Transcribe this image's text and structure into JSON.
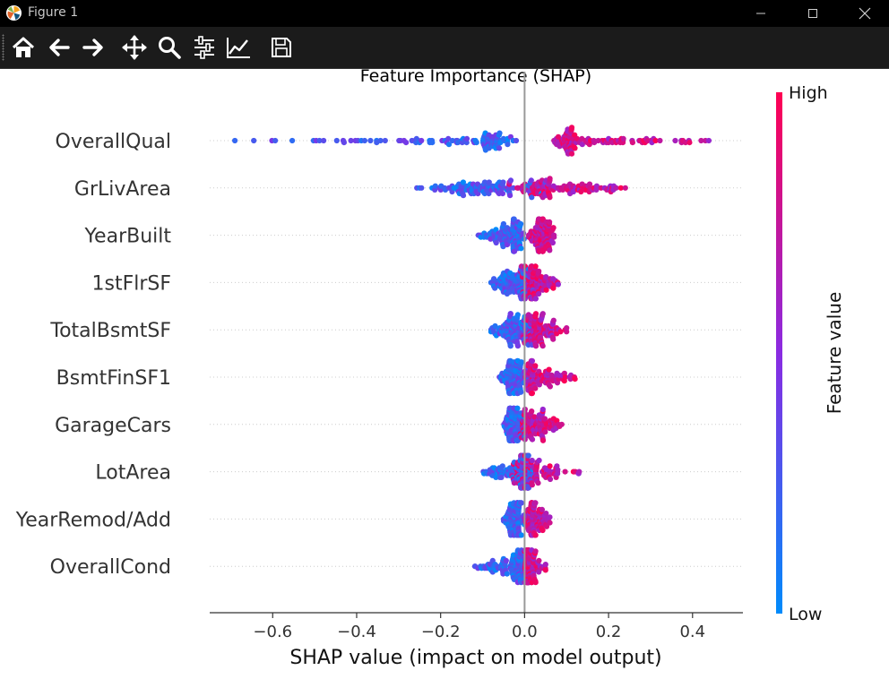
{
  "window": {
    "title": "Figure 1",
    "controls": [
      "minimize-icon",
      "maximize-icon",
      "close-icon"
    ]
  },
  "toolbar": {
    "tools": [
      {
        "name": "home",
        "icon": "home-icon"
      },
      {
        "name": "back",
        "icon": "arrow-left-icon"
      },
      {
        "name": "forward",
        "icon": "arrow-right-icon"
      },
      {
        "name": "pan",
        "icon": "move-icon"
      },
      {
        "name": "zoom",
        "icon": "magnifier-icon"
      },
      {
        "name": "configure-subplots",
        "icon": "sliders-icon"
      },
      {
        "name": "edit-axis",
        "icon": "line-chart-icon"
      },
      {
        "name": "save",
        "icon": "floppy-disk-icon"
      }
    ]
  },
  "colors": {
    "low": "#008bfb",
    "mid": "#8a2be2",
    "high": "#ff0052",
    "titlebar_bg": "#000000",
    "toolbar_bg": "#1b1b1b"
  },
  "chart_data": {
    "type": "scatter",
    "subtype": "shap-beeswarm",
    "title": "Feature Importance (SHAP)",
    "xlabel": "SHAP value (impact on model output)",
    "ylabel": "",
    "xlim": [
      -0.75,
      0.52
    ],
    "xticks": [
      -0.6,
      -0.4,
      -0.2,
      0.0,
      0.2,
      0.4
    ],
    "xtick_labels": [
      "−0.6",
      "−0.4",
      "−0.2",
      "0.0",
      "0.2",
      "0.4"
    ],
    "colorbar": {
      "label": "Feature value",
      "high": "High",
      "low": "Low"
    },
    "features": [
      {
        "name": "OverallQual",
        "min": -0.69,
        "max": 0.46,
        "low_range": [
          -0.69,
          -0.02
        ],
        "high_range": [
          0.07,
          0.46
        ],
        "low_center": -0.1,
        "high_center": 0.12
      },
      {
        "name": "GrLivArea",
        "min": -0.26,
        "max": 0.24,
        "low_range": [
          -0.26,
          0.05
        ],
        "high_range": [
          -0.04,
          0.24
        ],
        "low_center": -0.1,
        "high_center": 0.06
      },
      {
        "name": "YearBuilt",
        "min": -0.11,
        "max": 0.07,
        "low_range": [
          -0.11,
          0.0
        ],
        "high_range": [
          0.01,
          0.07
        ],
        "low_center": -0.03,
        "high_center": 0.04
      },
      {
        "name": "1stFlrSF",
        "min": -0.08,
        "max": 0.08,
        "low_range": [
          -0.08,
          0.02
        ],
        "high_range": [
          -0.01,
          0.08
        ],
        "low_center": -0.02,
        "high_center": 0.02
      },
      {
        "name": "TotalBsmtSF",
        "min": -0.08,
        "max": 0.1,
        "low_range": [
          -0.08,
          0.02
        ],
        "high_range": [
          -0.01,
          0.1
        ],
        "low_center": -0.02,
        "high_center": 0.03
      },
      {
        "name": "BsmtFinSF1",
        "min": -0.06,
        "max": 0.12,
        "low_range": [
          -0.06,
          0.01
        ],
        "high_range": [
          0.0,
          0.12
        ],
        "low_center": -0.03,
        "high_center": 0.02
      },
      {
        "name": "GarageCars",
        "min": -0.05,
        "max": 0.09,
        "low_range": [
          -0.05,
          0.0
        ],
        "high_range": [
          -0.01,
          0.09
        ],
        "low_center": -0.03,
        "high_center": 0.02
      },
      {
        "name": "LotArea",
        "min": -0.1,
        "max": 0.13,
        "low_range": [
          -0.1,
          0.02
        ],
        "high_range": [
          -0.03,
          0.13
        ],
        "low_center": -0.01,
        "high_center": 0.01
      },
      {
        "name": "YearRemod/Add",
        "min": -0.05,
        "max": 0.06,
        "low_range": [
          -0.05,
          0.0
        ],
        "high_range": [
          0.0,
          0.06
        ],
        "low_center": -0.02,
        "high_center": 0.02
      },
      {
        "name": "OverallCond",
        "min": -0.12,
        "max": 0.05,
        "low_range": [
          -0.12,
          0.0
        ],
        "high_range": [
          0.0,
          0.05
        ],
        "low_center": -0.02,
        "high_center": 0.01
      }
    ]
  }
}
